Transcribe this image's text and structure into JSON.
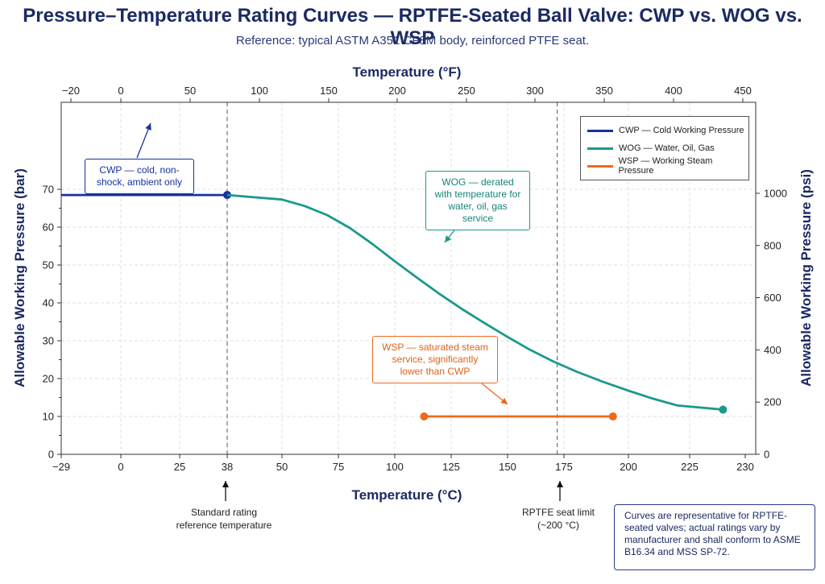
{
  "title": "Pressure–Temperature Rating Curves — RPTFE-Seated Ball Valve: CWP vs. WOG vs. WSP",
  "subtitle": "Reference: typical ASTM A351 CF8M body, reinforced PTFE seat.",
  "colors": {
    "cwp": "#1632a0",
    "wog": "#1a9a8c",
    "wsp": "#ef6a1a",
    "text": "#1b2a63"
  },
  "annotations": {
    "cwp_callout": "CWP — cold, non-shock, ambient only",
    "wog_callout": "WOG — derated with temperature for water, oil, gas service",
    "wsp_callout": "WSP — saturated steam service, significantly lower than CWP",
    "ref_temp_note": "Standard rating reference temperature",
    "seat_limit_note": "RPTFE seat limit (~200 °C)",
    "info_box": "Curves are representative for RPTFE-seated valves; actual ratings vary by manufacturer and shall conform to ASME B16.34 and MSS SP-72."
  },
  "chart_data": {
    "type": "line",
    "title": "Pressure–Temperature Rating Curves — RPTFE-Seated Ball Valve: CWP vs. WOG vs. WSP",
    "xlabel": "Temperature (°C)",
    "x2label": "Temperature (°F)",
    "ylabel": "Allowable Working Pressure (bar)",
    "y2label": "Allowable Working Pressure (psi)",
    "x_ticks": [
      "−29",
      "0",
      "25",
      "38",
      "50",
      "75",
      "100",
      "125",
      "150",
      "175",
      "200",
      "225",
      "230"
    ],
    "x2_ticks": [
      "−20",
      "0",
      "50",
      "100",
      "150",
      "200",
      "250",
      "300",
      "350",
      "400",
      "450"
    ],
    "y_ticks": [
      "0",
      "10",
      "20",
      "30",
      "40",
      "50",
      "60",
      "70"
    ],
    "y2_ticks": [
      "0",
      "200",
      "400",
      "600",
      "800",
      "1000"
    ],
    "ylim": [
      0,
      72
    ],
    "grid": true,
    "legend_position": "top-right",
    "reference_lines": [
      {
        "x": 38
      },
      {
        "x": 172
      }
    ],
    "series": [
      {
        "name": "CWP — Cold Working Pressure",
        "color": "#1632a0",
        "points": [
          [
            -29,
            68.5
          ],
          [
            38,
            68.5
          ]
        ],
        "markers": [
          [
            38,
            68.5
          ]
        ]
      },
      {
        "name": "WOG — Water, Oil, Gas",
        "color": "#1a9a8c",
        "points": [
          [
            38,
            68.5
          ],
          [
            50,
            67.3
          ],
          [
            60,
            65.6
          ],
          [
            70,
            63.2
          ],
          [
            80,
            59.8
          ],
          [
            90,
            55.6
          ],
          [
            100,
            51.0
          ],
          [
            110,
            46.6
          ],
          [
            120,
            42.3
          ],
          [
            130,
            38.3
          ],
          [
            140,
            34.6
          ],
          [
            150,
            31.0
          ],
          [
            160,
            27.6
          ],
          [
            170,
            24.6
          ],
          [
            180,
            21.8
          ],
          [
            190,
            19.2
          ],
          [
            200,
            16.8
          ],
          [
            210,
            14.7
          ],
          [
            220,
            12.9
          ],
          [
            228,
            11.8
          ]
        ],
        "markers": [
          [
            228,
            11.8
          ]
        ]
      },
      {
        "name": "WSP — Working Steam Pressure",
        "color": "#ef6a1a",
        "points": [
          [
            113,
            10
          ],
          [
            194,
            10
          ]
        ],
        "markers": [
          [
            113,
            10
          ],
          [
            194,
            10
          ]
        ]
      }
    ]
  }
}
